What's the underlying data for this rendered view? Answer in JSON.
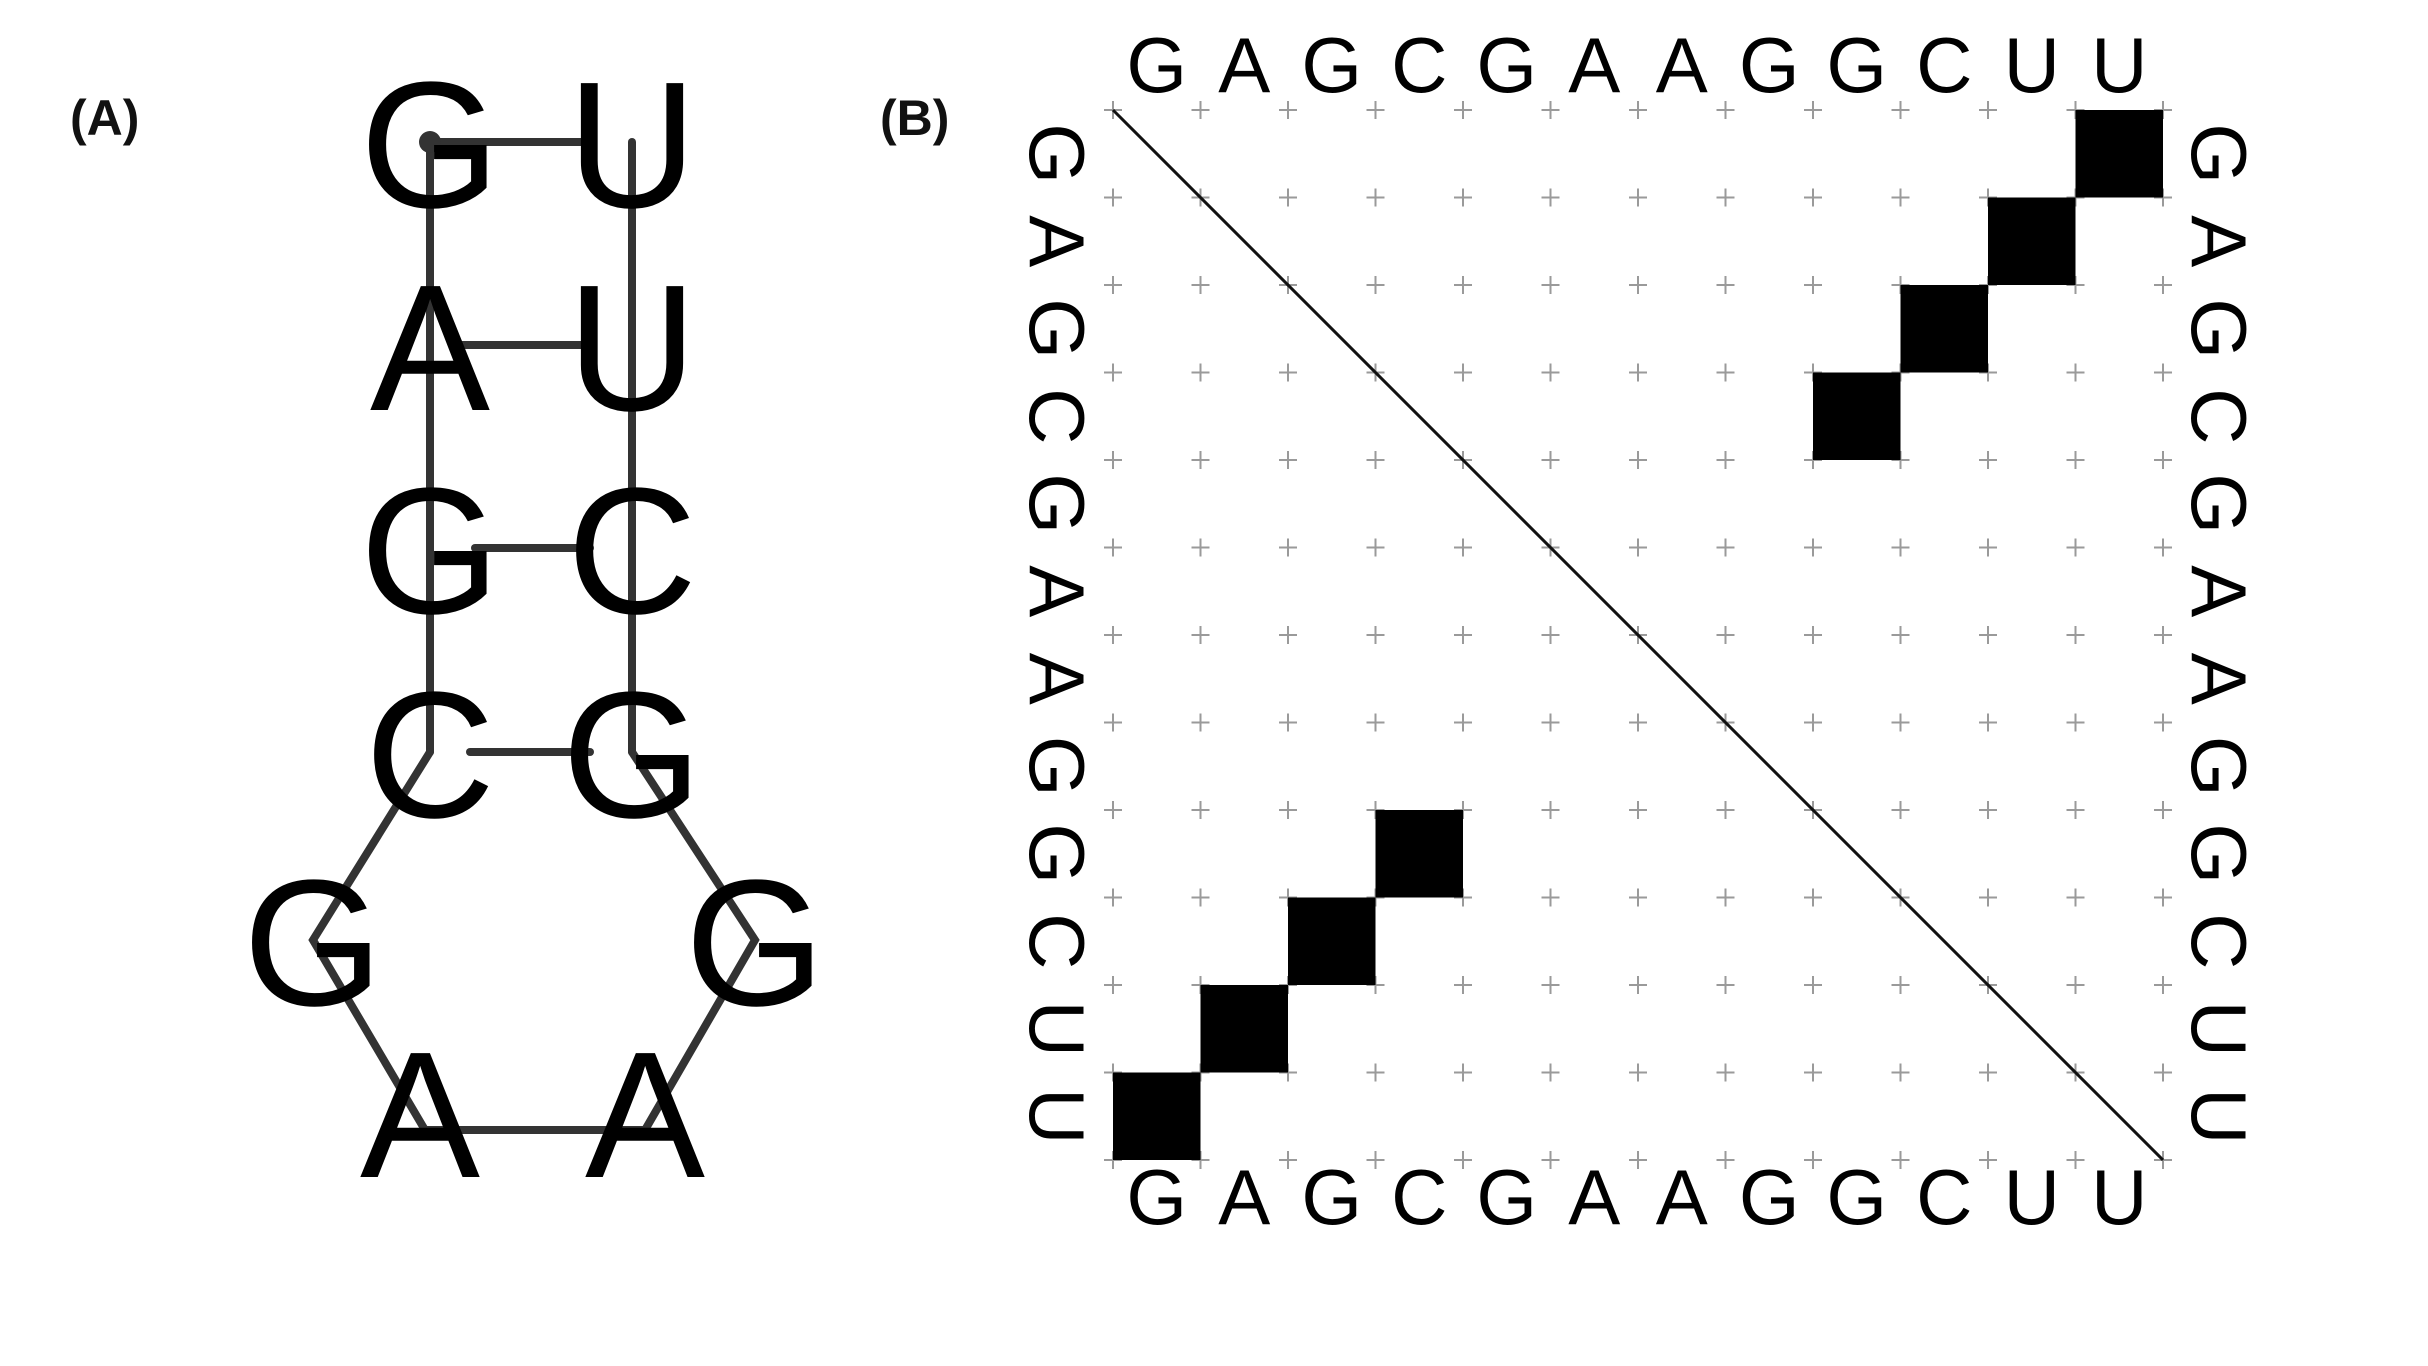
{
  "panel_a": {
    "label": "(A)",
    "stem": [
      {
        "left": "G",
        "right": "U"
      },
      {
        "left": "A",
        "right": "U"
      },
      {
        "left": "G",
        "right": "C"
      },
      {
        "left": "C",
        "right": "G"
      }
    ],
    "loop": [
      "G",
      "A",
      "A",
      "G"
    ]
  },
  "panel_b": {
    "label": "(B)",
    "sequence": [
      "G",
      "A",
      "G",
      "C",
      "G",
      "A",
      "A",
      "G",
      "G",
      "C",
      "U",
      "U"
    ],
    "pairs": [
      [
        1,
        12
      ],
      [
        2,
        11
      ],
      [
        3,
        10
      ],
      [
        4,
        9
      ]
    ],
    "colors": {
      "cell": "#000000",
      "grid": "#9a9a9a",
      "bond": "#333333"
    }
  }
}
